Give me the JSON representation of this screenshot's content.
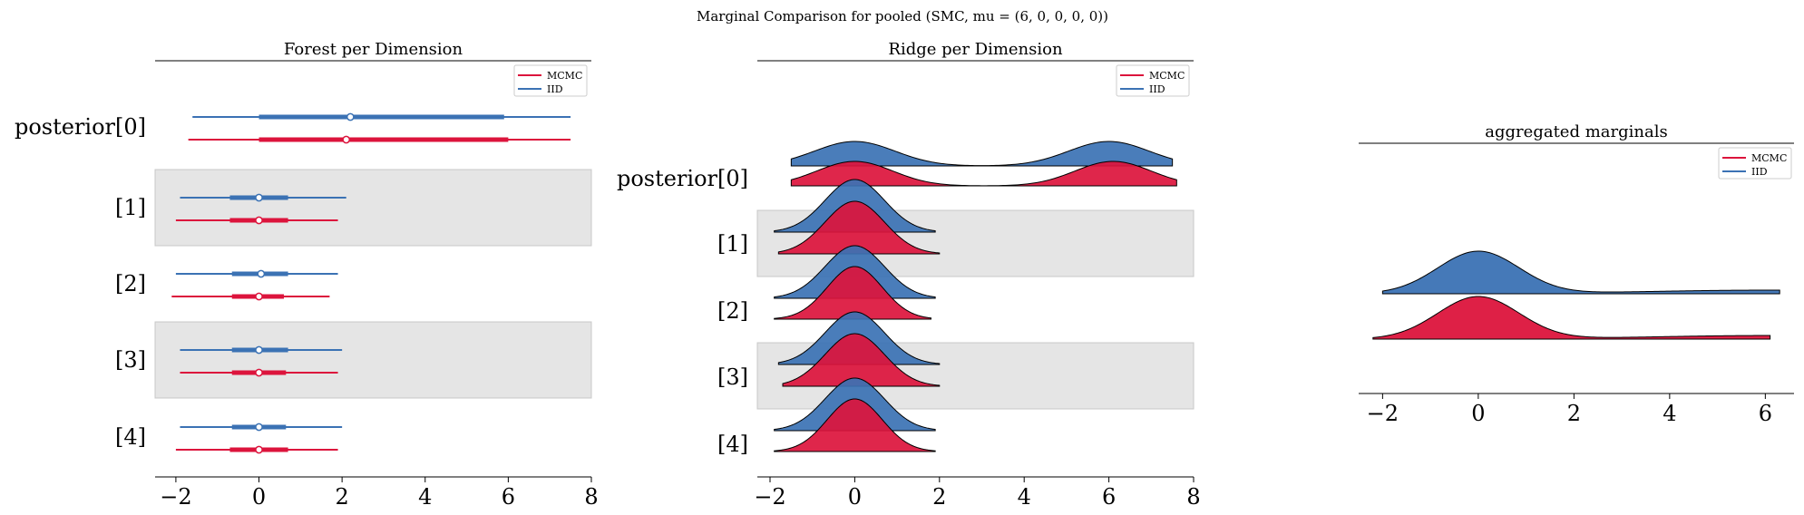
{
  "figure": {
    "suptitle": "Marginal Comparison for pooled (SMC, mu = (6, 0, 0, 0, 0))"
  },
  "chart_data": [
    {
      "type": "forest",
      "title": "Forest per Dimension",
      "xlim": [
        -2.5,
        8
      ],
      "xticks": [
        -2,
        0,
        2,
        4,
        6,
        8
      ],
      "tick_labels": [
        "−2",
        "0",
        "2",
        "4",
        "6",
        "8"
      ],
      "row_labels": [
        "posterior[0]",
        "[1]",
        "[2]",
        "[3]",
        "[4]"
      ],
      "shaded_rows": [
        1,
        3
      ],
      "legend": {
        "placement": "top-right",
        "entries": [
          "MCMC",
          "IID"
        ]
      },
      "series": [
        {
          "name": "IID",
          "color": "#3b72b4",
          "rows": [
            {
              "lo": -1.6,
              "q1": 0.0,
              "mid": 2.2,
              "q3": 5.9,
              "hi": 7.5
            },
            {
              "lo": -1.9,
              "q1": -0.7,
              "mid": 0.0,
              "q3": 0.7,
              "hi": 2.1
            },
            {
              "lo": -2.0,
              "q1": -0.65,
              "mid": 0.05,
              "q3": 0.7,
              "hi": 1.9
            },
            {
              "lo": -1.9,
              "q1": -0.65,
              "mid": 0.0,
              "q3": 0.7,
              "hi": 2.0
            },
            {
              "lo": -1.9,
              "q1": -0.65,
              "mid": 0.0,
              "q3": 0.65,
              "hi": 2.0
            }
          ]
        },
        {
          "name": "MCMC",
          "color": "#dc143c",
          "rows": [
            {
              "lo": -1.7,
              "q1": 0.0,
              "mid": 2.1,
              "q3": 6.0,
              "hi": 7.5
            },
            {
              "lo": -2.0,
              "q1": -0.7,
              "mid": 0.0,
              "q3": 0.7,
              "hi": 1.9
            },
            {
              "lo": -2.1,
              "q1": -0.65,
              "mid": 0.0,
              "q3": 0.6,
              "hi": 1.7
            },
            {
              "lo": -1.9,
              "q1": -0.65,
              "mid": 0.0,
              "q3": 0.65,
              "hi": 1.9
            },
            {
              "lo": -2.0,
              "q1": -0.7,
              "mid": 0.0,
              "q3": 0.7,
              "hi": 1.9
            }
          ]
        }
      ]
    },
    {
      "type": "ridge",
      "title": "Ridge per Dimension",
      "xlim": [
        -2.3,
        8
      ],
      "xticks": [
        -2,
        0,
        2,
        4,
        6,
        8
      ],
      "tick_labels": [
        "−2",
        "0",
        "2",
        "4",
        "6",
        "8"
      ],
      "row_labels": [
        "posterior[0]",
        "[1]",
        "[2]",
        "[3]",
        "[4]"
      ],
      "shaded_rows": [
        1,
        3
      ],
      "legend": {
        "placement": "top-right",
        "entries": [
          "MCMC",
          "IID"
        ]
      },
      "series": [
        {
          "name": "IID",
          "color": "#3b72b4",
          "rows": [
            {
              "range": [
                -1.5,
                7.5
              ],
              "components": [
                [
                  0.5,
                  0.0,
                  0.95
                ],
                [
                  0.5,
                  6.0,
                  0.95
                ]
              ]
            },
            {
              "range": [
                -1.9,
                1.9
              ],
              "components": [
                [
                  1,
                  0.0,
                  0.7
                ]
              ]
            },
            {
              "range": [
                -1.9,
                1.9
              ],
              "components": [
                [
                  1,
                  0.0,
                  0.7
                ]
              ]
            },
            {
              "range": [
                -1.8,
                2.0
              ],
              "components": [
                [
                  1,
                  0.0,
                  0.7
                ]
              ]
            },
            {
              "range": [
                -1.9,
                1.9
              ],
              "components": [
                [
                  1,
                  0.0,
                  0.7
                ]
              ]
            }
          ]
        },
        {
          "name": "MCMC",
          "color": "#dc143c",
          "rows": [
            {
              "range": [
                -1.5,
                7.6
              ],
              "components": [
                [
                  0.5,
                  0.0,
                  0.9
                ],
                [
                  0.5,
                  6.1,
                  0.9
                ]
              ]
            },
            {
              "range": [
                -1.8,
                2.0
              ],
              "components": [
                [
                  1,
                  0.0,
                  0.7
                ]
              ]
            },
            {
              "range": [
                -1.9,
                1.8
              ],
              "components": [
                [
                  1,
                  0.0,
                  0.65
                ]
              ]
            },
            {
              "range": [
                -1.7,
                2.0
              ],
              "components": [
                [
                  1,
                  0.0,
                  0.7
                ]
              ]
            },
            {
              "range": [
                -1.9,
                1.9
              ],
              "components": [
                [
                  1,
                  0.0,
                  0.65
                ]
              ]
            }
          ]
        }
      ]
    },
    {
      "type": "ridge",
      "title": "aggregated marginals",
      "xlim": [
        -2.5,
        6.6
      ],
      "xticks": [
        -2,
        0,
        2,
        4,
        6
      ],
      "tick_labels": [
        "−2",
        "0",
        "2",
        "4",
        "6"
      ],
      "legend": {
        "placement": "top-right",
        "entries": [
          "MCMC",
          "IID"
        ]
      },
      "series": [
        {
          "name": "IID",
          "color": "#3b72b4",
          "range": [
            -2.0,
            6.3
          ],
          "components": [
            [
              0.8,
              0.0,
              0.85
            ],
            [
              0.2,
              6.0,
              2.5
            ]
          ]
        },
        {
          "name": "MCMC",
          "color": "#dc143c",
          "range": [
            -2.2,
            6.1
          ],
          "components": [
            [
              0.8,
              0.0,
              0.85
            ],
            [
              0.2,
              6.1,
              2.5
            ]
          ]
        }
      ]
    }
  ]
}
